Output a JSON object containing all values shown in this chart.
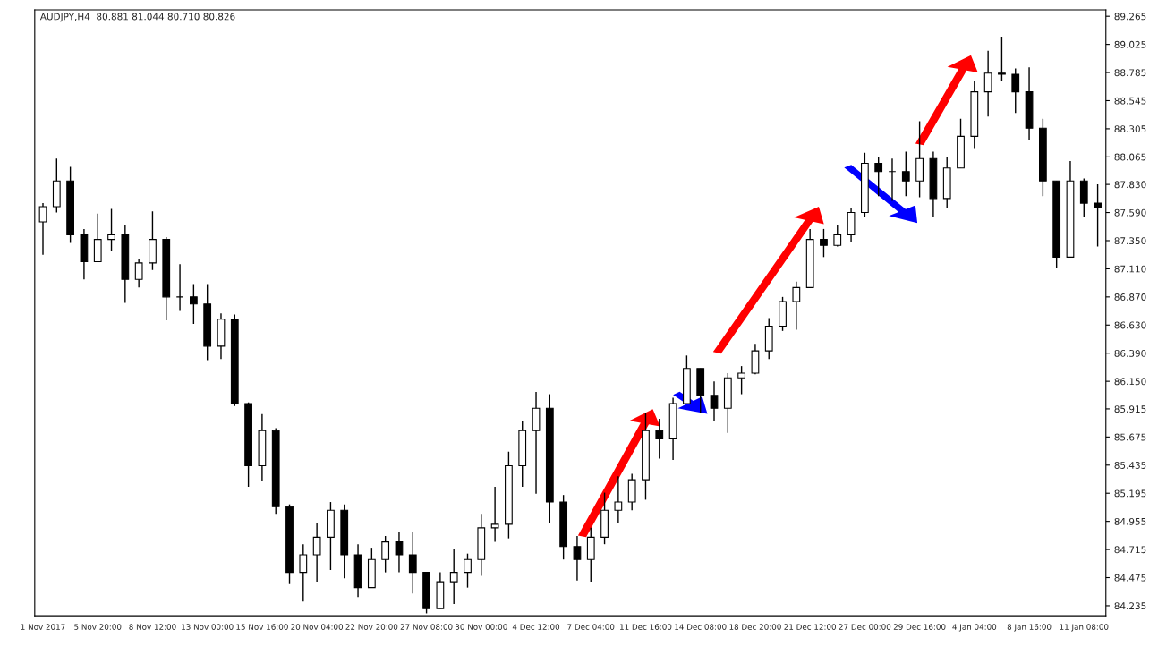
{
  "chart_data": {
    "type": "candlestick",
    "title": "AUDJPY,H4  80.881 81.044 80.710 80.826",
    "categories": [
      "1 Nov 2017",
      null,
      null,
      null,
      "5 Nov 20:00",
      null,
      null,
      null,
      "8 Nov 12:00",
      null,
      null,
      null,
      "13 Nov 00:00",
      null,
      null,
      null,
      "15 Nov 16:00",
      null,
      null,
      null,
      "20 Nov 04:00",
      null,
      null,
      null,
      "22 Nov 20:00",
      null,
      null,
      null,
      "27 Nov 08:00",
      null,
      null,
      null,
      "30 Nov 00:00",
      null,
      null,
      null,
      "4 Dec 12:00",
      null,
      null,
      null,
      "7 Dec 04:00",
      null,
      null,
      null,
      "11 Dec 16:00",
      null,
      null,
      null,
      "14 Dec 08:00",
      null,
      null,
      null,
      "18 Dec 20:00",
      null,
      null,
      null,
      "21 Dec 12:00",
      null,
      null,
      null,
      "27 Dec 00:00",
      null,
      null,
      null,
      "29 Dec 16:00",
      null,
      null,
      null,
      "4 Jan 04:00",
      null,
      null,
      null,
      "8 Jan 16:00",
      null,
      null,
      null,
      "11 Jan 08:00",
      null
    ],
    "ohlc": [
      [
        87.51,
        87.67,
        87.23,
        87.64
      ],
      [
        87.64,
        88.05,
        87.59,
        87.86
      ],
      [
        87.86,
        87.98,
        87.33,
        87.4
      ],
      [
        87.4,
        87.45,
        87.02,
        87.17
      ],
      [
        87.17,
        87.58,
        87.17,
        87.36
      ],
      [
        87.36,
        87.62,
        87.26,
        87.4
      ],
      [
        87.4,
        87.48,
        86.82,
        87.02
      ],
      [
        87.02,
        87.19,
        86.95,
        87.16
      ],
      [
        87.16,
        87.6,
        87.1,
        87.36
      ],
      [
        87.36,
        87.38,
        86.67,
        86.87
      ],
      [
        86.87,
        87.15,
        86.75,
        86.87
      ],
      [
        86.87,
        86.98,
        86.64,
        86.81
      ],
      [
        86.81,
        86.98,
        86.33,
        86.45
      ],
      [
        86.45,
        86.73,
        86.34,
        86.68
      ],
      [
        86.68,
        86.72,
        85.94,
        85.96
      ],
      [
        85.96,
        85.97,
        85.25,
        85.43
      ],
      [
        85.43,
        85.87,
        85.3,
        85.73
      ],
      [
        85.73,
        85.75,
        85.02,
        85.08
      ],
      [
        85.08,
        85.1,
        84.42,
        84.52
      ],
      [
        84.52,
        84.76,
        84.27,
        84.67
      ],
      [
        84.67,
        84.94,
        84.44,
        84.82
      ],
      [
        84.82,
        85.12,
        84.54,
        85.05
      ],
      [
        85.05,
        85.1,
        84.47,
        84.67
      ],
      [
        84.67,
        84.76,
        84.31,
        84.39
      ],
      [
        84.39,
        84.73,
        84.39,
        84.63
      ],
      [
        84.63,
        84.83,
        84.52,
        84.78
      ],
      [
        84.78,
        84.86,
        84.52,
        84.67
      ],
      [
        84.67,
        84.86,
        84.34,
        84.52
      ],
      [
        84.52,
        84.52,
        84.17,
        84.21
      ],
      [
        84.21,
        84.52,
        84.21,
        84.44
      ],
      [
        84.44,
        84.72,
        84.25,
        84.52
      ],
      [
        84.52,
        84.68,
        84.39,
        84.63
      ],
      [
        84.63,
        85.02,
        84.49,
        84.9
      ],
      [
        84.9,
        85.25,
        84.78,
        84.93
      ],
      [
        84.93,
        85.55,
        84.81,
        85.43
      ],
      [
        85.43,
        85.81,
        85.25,
        85.73
      ],
      [
        85.73,
        86.06,
        85.19,
        85.92
      ],
      [
        85.92,
        86.04,
        84.94,
        85.12
      ],
      [
        85.12,
        85.18,
        84.63,
        84.74
      ],
      [
        84.74,
        84.83,
        84.45,
        84.63
      ],
      [
        84.63,
        84.9,
        84.44,
        84.82
      ],
      [
        84.82,
        85.2,
        84.76,
        85.05
      ],
      [
        85.05,
        85.34,
        84.94,
        85.12
      ],
      [
        85.12,
        85.36,
        85.05,
        85.31
      ],
      [
        85.31,
        85.88,
        85.14,
        85.73
      ],
      [
        85.73,
        85.83,
        85.49,
        85.66
      ],
      [
        85.66,
        86.01,
        85.48,
        85.96
      ],
      [
        85.96,
        86.37,
        85.96,
        86.26
      ],
      [
        86.26,
        86.26,
        85.88,
        86.03
      ],
      [
        86.03,
        86.15,
        85.81,
        85.92
      ],
      [
        85.92,
        86.22,
        85.71,
        86.18
      ],
      [
        86.18,
        86.28,
        86.04,
        86.22
      ],
      [
        86.22,
        86.47,
        86.21,
        86.41
      ],
      [
        86.41,
        86.69,
        86.34,
        86.62
      ],
      [
        86.62,
        86.87,
        86.58,
        86.83
      ],
      [
        86.83,
        87.0,
        86.59,
        86.95
      ],
      [
        86.95,
        87.45,
        86.95,
        87.36
      ],
      [
        87.36,
        87.45,
        87.21,
        87.31
      ],
      [
        87.31,
        87.48,
        87.3,
        87.4
      ],
      [
        87.4,
        87.63,
        87.34,
        87.59
      ],
      [
        87.59,
        88.1,
        87.55,
        88.01
      ],
      [
        88.01,
        88.06,
        87.73,
        87.94
      ],
      [
        87.94,
        88.05,
        87.69,
        87.94
      ],
      [
        87.94,
        88.11,
        87.73,
        87.86
      ],
      [
        87.86,
        88.37,
        87.72,
        88.05
      ],
      [
        88.05,
        88.11,
        87.55,
        87.71
      ],
      [
        87.71,
        88.06,
        87.63,
        87.97
      ],
      [
        87.97,
        88.39,
        87.97,
        88.24
      ],
      [
        88.24,
        88.71,
        88.14,
        88.62
      ],
      [
        88.62,
        88.97,
        88.41,
        88.78
      ],
      [
        88.78,
        89.09,
        88.71,
        88.77
      ],
      [
        88.77,
        88.82,
        88.44,
        88.62
      ],
      [
        88.62,
        88.83,
        88.21,
        88.31
      ],
      [
        88.31,
        88.39,
        87.73,
        87.86
      ],
      [
        87.86,
        87.86,
        87.12,
        87.21
      ],
      [
        87.21,
        88.03,
        87.21,
        87.86
      ],
      [
        87.86,
        87.88,
        87.55,
        87.67
      ],
      [
        87.67,
        87.83,
        87.3,
        87.63
      ]
    ],
    "color": "#000000",
    "ylim": [
      84.15,
      89.32
    ],
    "yticks": [
      {
        "value": 84.235,
        "label": "84.235"
      },
      {
        "value": 84.475,
        "label": "84.475"
      },
      {
        "value": 84.715,
        "label": "84.715"
      },
      {
        "value": 84.955,
        "label": "84.955"
      },
      {
        "value": 85.195,
        "label": "85.195"
      },
      {
        "value": 85.435,
        "label": "85.435"
      },
      {
        "value": 85.675,
        "label": "85.675"
      },
      {
        "value": 85.915,
        "label": "85.915"
      },
      {
        "value": 86.15,
        "label": "86.150"
      },
      {
        "value": 86.39,
        "label": "86.390"
      },
      {
        "value": 86.63,
        "label": "86.630"
      },
      {
        "value": 86.87,
        "label": "86.870"
      },
      {
        "value": 87.11,
        "label": "87.110"
      },
      {
        "value": 87.35,
        "label": "87.350"
      },
      {
        "value": 87.59,
        "label": "87.590"
      },
      {
        "value": 87.83,
        "label": "87.830"
      },
      {
        "value": 88.065,
        "label": "88.065"
      },
      {
        "value": 88.305,
        "label": "88.305"
      },
      {
        "value": 88.545,
        "label": "88.545"
      },
      {
        "value": 88.785,
        "label": "88.785"
      },
      {
        "value": 89.025,
        "label": "89.025"
      },
      {
        "value": 89.265,
        "label": "89.265"
      }
    ],
    "grid": false
  }
}
